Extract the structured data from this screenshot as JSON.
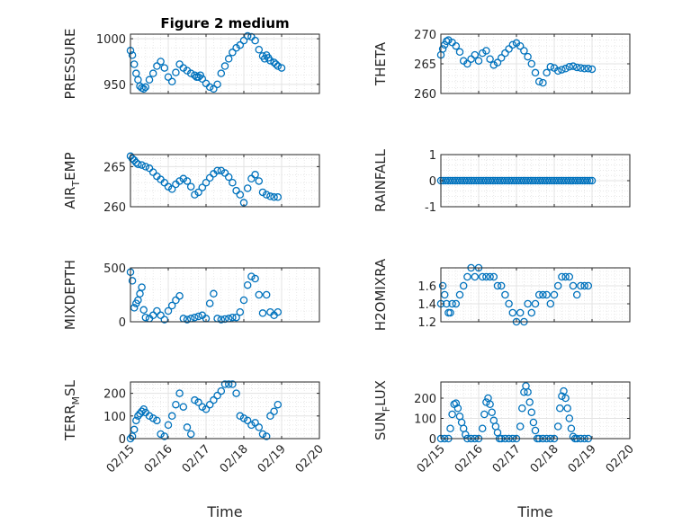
{
  "figure_title": "Figure 2 medium",
  "marker_color": "#0072bd",
  "chart_data": [
    {
      "type": "scatter",
      "id": "pressure",
      "title": "Figure 2 medium",
      "ylabel": "PRESSURE",
      "ylabel_main": "PRESSURE",
      "ylabel_sub": "",
      "ylabel_tail": "",
      "ylim": [
        940,
        1005
      ],
      "yticks": [
        950,
        1000
      ],
      "series": [
        {
          "name": "PRESSURE",
          "x": [
            0.0,
            0.05,
            0.1,
            0.15,
            0.2,
            0.25,
            0.3,
            0.35,
            0.4,
            0.5,
            0.6,
            0.7,
            0.8,
            0.9,
            1.0,
            1.1,
            1.2,
            1.3,
            1.4,
            1.5,
            1.6,
            1.7,
            1.75,
            1.8,
            1.85,
            1.9,
            2.0,
            2.1,
            2.2,
            2.3,
            2.4,
            2.5,
            2.6,
            2.7,
            2.8,
            2.9,
            3.0,
            3.1,
            3.2,
            3.3,
            3.4,
            3.5,
            3.55,
            3.6,
            3.65,
            3.7,
            3.8,
            3.85,
            3.9,
            4.0
          ],
          "y": [
            987,
            982,
            972,
            962,
            955,
            948,
            946,
            945,
            947,
            955,
            962,
            970,
            975,
            968,
            958,
            953,
            963,
            972,
            968,
            965,
            962,
            960,
            958,
            958,
            960,
            956,
            951,
            947,
            945,
            950,
            962,
            970,
            978,
            985,
            990,
            993,
            998,
            1003,
            1002,
            998,
            988,
            981,
            978,
            982,
            979,
            976,
            974,
            972,
            970,
            968
          ]
        }
      ]
    },
    {
      "type": "scatter",
      "id": "theta",
      "ylabel": "THETA",
      "ylabel_main": "THETA",
      "ylabel_sub": "",
      "ylabel_tail": "",
      "ylim": [
        260,
        270
      ],
      "yticks": [
        260,
        265,
        270
      ],
      "series": [
        {
          "name": "THETA",
          "x": [
            0.0,
            0.05,
            0.1,
            0.15,
            0.2,
            0.3,
            0.4,
            0.5,
            0.6,
            0.7,
            0.8,
            0.9,
            1.0,
            1.1,
            1.2,
            1.3,
            1.4,
            1.5,
            1.6,
            1.7,
            1.8,
            1.9,
            2.0,
            2.1,
            2.2,
            2.3,
            2.4,
            2.5,
            2.6,
            2.7,
            2.8,
            2.9,
            3.0,
            3.1,
            3.2,
            3.3,
            3.4,
            3.5,
            3.6,
            3.7,
            3.8,
            3.9,
            4.0
          ],
          "y": [
            266.5,
            267.5,
            268.2,
            268.8,
            269.0,
            268.6,
            268.0,
            267.0,
            265.5,
            265.0,
            265.8,
            266.5,
            265.5,
            266.8,
            267.2,
            265.8,
            264.8,
            265.2,
            266.0,
            266.8,
            267.5,
            268.2,
            268.5,
            268.0,
            267.2,
            266.2,
            265.0,
            263.5,
            262.0,
            261.8,
            263.5,
            264.5,
            264.3,
            263.8,
            264.0,
            264.2,
            264.5,
            264.6,
            264.4,
            264.3,
            264.2,
            264.2,
            264.1
          ]
        }
      ]
    },
    {
      "type": "scatter",
      "id": "air_temp",
      "ylabel": "AIR_TEMP",
      "ylabel_main": "AIR",
      "ylabel_sub": "T",
      "ylabel_tail": "EMP",
      "ylim": [
        260,
        266.5
      ],
      "yticks": [
        260,
        265
      ],
      "series": [
        {
          "name": "AIR_TEMP",
          "x": [
            0.0,
            0.05,
            0.1,
            0.15,
            0.2,
            0.3,
            0.4,
            0.5,
            0.6,
            0.7,
            0.8,
            0.9,
            1.0,
            1.1,
            1.2,
            1.3,
            1.4,
            1.5,
            1.6,
            1.7,
            1.8,
            1.9,
            2.0,
            2.1,
            2.2,
            2.3,
            2.4,
            2.5,
            2.6,
            2.7,
            2.8,
            2.9,
            3.0,
            3.1,
            3.2,
            3.3,
            3.4,
            3.5,
            3.6,
            3.7,
            3.8,
            3.9
          ],
          "y": [
            266.3,
            266.0,
            265.8,
            265.5,
            265.3,
            265.2,
            265.0,
            264.8,
            264.3,
            263.8,
            263.4,
            263.0,
            262.5,
            262.2,
            262.8,
            263.2,
            263.5,
            263.2,
            262.5,
            261.5,
            261.8,
            262.4,
            263.0,
            263.6,
            264.1,
            264.5,
            264.5,
            264.2,
            263.7,
            263.0,
            262.0,
            261.5,
            260.5,
            262.3,
            263.5,
            264.0,
            263.2,
            261.8,
            261.5,
            261.3,
            261.2,
            261.2
          ]
        }
      ]
    },
    {
      "type": "scatter",
      "id": "rainfall",
      "ylabel": "RAINFALL",
      "ylabel_main": "RAINFALL",
      "ylabel_sub": "",
      "ylabel_tail": "",
      "ylim": [
        -1,
        1
      ],
      "yticks": [
        -1,
        0,
        1
      ],
      "series": [
        {
          "name": "RAINFALL",
          "constant": 0,
          "x_start": 0.0,
          "x_end": 4.0,
          "count": 65
        }
      ]
    },
    {
      "type": "scatter",
      "id": "mixdepth",
      "ylabel": "MIXDEPTH",
      "ylabel_main": "MIXDEPTH",
      "ylabel_sub": "",
      "ylabel_tail": "",
      "ylim": [
        0,
        500
      ],
      "yticks": [
        0,
        500
      ],
      "series": [
        {
          "name": "MIXDEPTH",
          "x": [
            0.0,
            0.05,
            0.1,
            0.15,
            0.2,
            0.25,
            0.3,
            0.35,
            0.4,
            0.5,
            0.6,
            0.7,
            0.8,
            0.9,
            1.0,
            1.1,
            1.2,
            1.3,
            1.4,
            1.5,
            1.6,
            1.7,
            1.8,
            1.9,
            2.0,
            2.1,
            2.2,
            2.3,
            2.4,
            2.5,
            2.6,
            2.7,
            2.8,
            2.9,
            3.0,
            3.1,
            3.2,
            3.3,
            3.4,
            3.5,
            3.6,
            3.7,
            3.8,
            3.9
          ],
          "y": [
            460,
            380,
            130,
            170,
            200,
            260,
            320,
            110,
            40,
            30,
            60,
            100,
            60,
            20,
            100,
            150,
            200,
            240,
            30,
            20,
            30,
            40,
            50,
            60,
            30,
            170,
            260,
            30,
            20,
            25,
            30,
            40,
            40,
            90,
            200,
            340,
            420,
            400,
            250,
            80,
            250,
            90,
            60,
            90
          ]
        }
      ]
    },
    {
      "type": "scatter",
      "id": "h2omixra",
      "ylabel": "H2OMIXRA",
      "ylabel_main": "H2OMIXRA",
      "ylabel_sub": "",
      "ylabel_tail": "",
      "ylim": [
        1.2,
        1.8
      ],
      "yticks": [
        1.2,
        1.4,
        1.6
      ],
      "series": [
        {
          "name": "H2OMIXRA",
          "x": [
            0.0,
            0.05,
            0.1,
            0.15,
            0.2,
            0.25,
            0.3,
            0.4,
            0.5,
            0.6,
            0.7,
            0.8,
            0.9,
            1.0,
            1.1,
            1.2,
            1.3,
            1.4,
            1.5,
            1.6,
            1.7,
            1.8,
            1.9,
            2.0,
            2.1,
            2.2,
            2.3,
            2.4,
            2.5,
            2.6,
            2.7,
            2.8,
            2.9,
            3.0,
            3.1,
            3.2,
            3.3,
            3.4,
            3.5,
            3.6,
            3.7,
            3.8,
            3.9
          ],
          "y": [
            1.4,
            1.6,
            1.5,
            1.4,
            1.3,
            1.3,
            1.4,
            1.4,
            1.5,
            1.6,
            1.7,
            1.8,
            1.7,
            1.8,
            1.7,
            1.7,
            1.7,
            1.7,
            1.6,
            1.6,
            1.5,
            1.4,
            1.3,
            1.2,
            1.3,
            1.2,
            1.4,
            1.3,
            1.4,
            1.5,
            1.5,
            1.5,
            1.4,
            1.5,
            1.6,
            1.7,
            1.7,
            1.7,
            1.6,
            1.5,
            1.6,
            1.6,
            1.6
          ]
        }
      ]
    },
    {
      "type": "scatter",
      "id": "terr_msl",
      "ylabel": "TERR_MSL",
      "ylabel_main": "TERR",
      "ylabel_sub": "M",
      "ylabel_tail": "SL",
      "ylim": [
        0,
        250
      ],
      "yticks": [
        0,
        100,
        200
      ],
      "series": [
        {
          "name": "TERR_MSL",
          "x": [
            0.0,
            0.05,
            0.1,
            0.15,
            0.2,
            0.25,
            0.3,
            0.35,
            0.4,
            0.5,
            0.6,
            0.7,
            0.8,
            0.9,
            1.0,
            1.1,
            1.2,
            1.3,
            1.4,
            1.5,
            1.6,
            1.7,
            1.8,
            1.9,
            2.0,
            2.1,
            2.2,
            2.3,
            2.4,
            2.5,
            2.6,
            2.7,
            2.8,
            2.9,
            3.0,
            3.1,
            3.2,
            3.3,
            3.4,
            3.5,
            3.6,
            3.7,
            3.8,
            3.9
          ],
          "y": [
            0,
            10,
            40,
            80,
            100,
            110,
            120,
            130,
            115,
            100,
            90,
            80,
            20,
            10,
            60,
            100,
            150,
            200,
            140,
            50,
            20,
            170,
            160,
            140,
            130,
            150,
            170,
            190,
            210,
            240,
            240,
            240,
            200,
            100,
            90,
            80,
            60,
            70,
            50,
            20,
            10,
            100,
            120,
            150
          ]
        }
      ]
    },
    {
      "type": "scatter",
      "id": "sun_flux",
      "ylabel": "SUN_FLUX",
      "ylabel_main": "SUN",
      "ylabel_sub": "F",
      "ylabel_tail": "LUX",
      "ylim": [
        0,
        280
      ],
      "yticks": [
        0,
        100,
        200
      ],
      "series": [
        {
          "name": "SUN_FLUX",
          "x": [
            0.0,
            0.1,
            0.2,
            0.25,
            0.3,
            0.35,
            0.4,
            0.45,
            0.5,
            0.55,
            0.6,
            0.65,
            0.7,
            0.8,
            0.9,
            1.0,
            1.1,
            1.15,
            1.2,
            1.25,
            1.3,
            1.35,
            1.4,
            1.45,
            1.5,
            1.55,
            1.6,
            1.7,
            1.8,
            1.9,
            2.0,
            2.1,
            2.15,
            2.2,
            2.25,
            2.3,
            2.35,
            2.4,
            2.45,
            2.5,
            2.55,
            2.6,
            2.7,
            2.8,
            2.9,
            3.0,
            3.1,
            3.15,
            3.2,
            3.25,
            3.3,
            3.35,
            3.4,
            3.45,
            3.5,
            3.55,
            3.6,
            3.7,
            3.8,
            3.9
          ],
          "y": [
            0,
            0,
            0,
            50,
            120,
            170,
            175,
            150,
            110,
            80,
            50,
            20,
            0,
            0,
            0,
            0,
            50,
            120,
            180,
            200,
            170,
            130,
            90,
            60,
            30,
            0,
            0,
            0,
            0,
            0,
            0,
            60,
            150,
            230,
            260,
            230,
            180,
            130,
            80,
            40,
            0,
            0,
            0,
            0,
            0,
            0,
            60,
            150,
            210,
            235,
            200,
            150,
            100,
            50,
            10,
            0,
            0,
            0,
            0,
            0
          ]
        }
      ]
    }
  ],
  "shared_x": {
    "label": "Time",
    "tick_labels": [
      "02/15",
      "02/16",
      "02/17",
      "02/18",
      "02/19",
      "02/20"
    ],
    "xlim": [
      0,
      5
    ]
  }
}
